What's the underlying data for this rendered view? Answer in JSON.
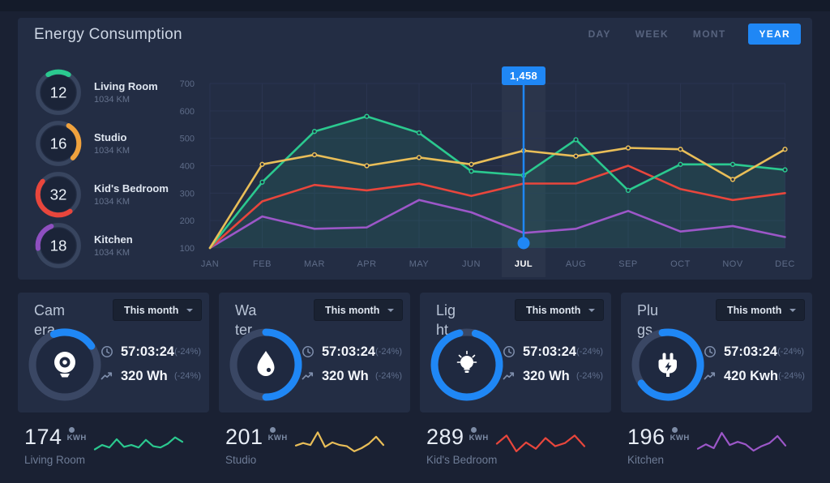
{
  "header": {
    "title": "Energy Consumption",
    "tabs": [
      {
        "label": "DAY",
        "active": false
      },
      {
        "label": "WEEK",
        "active": false
      },
      {
        "label": "MONT",
        "active": false
      },
      {
        "label": "YEAR",
        "active": true
      }
    ]
  },
  "gauges": [
    {
      "value": "12",
      "label": "Living Room",
      "sub": "1034 KM",
      "color": "#2BC98F",
      "arc_start": -30,
      "arc_sweep": 60
    },
    {
      "value": "16",
      "label": "Studio",
      "sub": "1034 KM",
      "color": "#F0A23D",
      "arc_start": 30,
      "arc_sweep": 105
    },
    {
      "value": "32",
      "label": "Kid's Bedroom",
      "sub": "1034 KM",
      "color": "#E8463C",
      "arc_start": 145,
      "arc_sweep": 165
    },
    {
      "value": "18",
      "label": "Kitchen",
      "sub": "1034 KM",
      "color": "#8E4FC0",
      "arc_start": 262,
      "arc_sweep": 78
    }
  ],
  "chart_data": {
    "type": "line",
    "x_labels": [
      "JAN",
      "FEB",
      "MAR",
      "APR",
      "MAY",
      "JUN",
      "JUL",
      "AUG",
      "SEP",
      "OCT",
      "NOV",
      "DEC"
    ],
    "y_ticks": [
      700,
      600,
      500,
      400,
      300,
      200,
      100
    ],
    "ylim": [
      100,
      700
    ],
    "grid": true,
    "series": [
      {
        "name": "Kitchen",
        "color": "#9C57C8",
        "values": [
          100,
          215,
          170,
          175,
          275,
          230,
          155,
          170,
          235,
          160,
          180,
          140
        ]
      },
      {
        "name": "Kid's Bedroom",
        "color": "#E8463C",
        "values": [
          100,
          270,
          330,
          310,
          335,
          290,
          335,
          335,
          400,
          315,
          275,
          300
        ]
      },
      {
        "name": "Living Room",
        "color": "#2BC98F",
        "area": true,
        "markers": true,
        "values": [
          100,
          340,
          525,
          580,
          520,
          380,
          365,
          495,
          310,
          405,
          405,
          385
        ]
      },
      {
        "name": "Studio",
        "color": "#E9BE58",
        "markers": true,
        "values": [
          100,
          405,
          440,
          400,
          430,
          405,
          455,
          435,
          465,
          460,
          350,
          460
        ]
      }
    ],
    "highlight": {
      "month": "JUL",
      "tooltip": "1,458"
    }
  },
  "cards": [
    {
      "title": "Camera",
      "title_lines": [
        "Cam",
        "era"
      ],
      "dropdown": "This month",
      "icon": "webcam-icon",
      "progress_start": -20,
      "progress_sweep": 75,
      "time": "57:03:24",
      "time_delta": "(-24%)",
      "energy": "320 Wh",
      "energy_delta": "(-24%)"
    },
    {
      "title": "Water",
      "title_lines": [
        "Wa",
        "ter"
      ],
      "dropdown": "This month",
      "icon": "water-drop-icon",
      "progress_start": 0,
      "progress_sweep": 180,
      "time": "57:03:24",
      "time_delta": "(-24%)",
      "energy": "320 Wh",
      "energy_delta": "(-24%)"
    },
    {
      "title": "Light",
      "title_lines": [
        "Lig",
        "ht"
      ],
      "dropdown": "This month",
      "icon": "light-bulb-icon",
      "progress_start": 15,
      "progress_sweep": 332,
      "time": "57:03:24",
      "time_delta": "(-24%)",
      "energy": "320 Wh",
      "energy_delta": "(-24%)"
    },
    {
      "title": "Plugs",
      "title_lines": [
        "Plu",
        "gs"
      ],
      "dropdown": "This month",
      "icon": "plug-icon",
      "progress_start": -10,
      "progress_sweep": 245,
      "time": "57:03:24",
      "time_delta": "(-24%)",
      "energy": "420 Kwh",
      "energy_delta": "(-24%)"
    }
  ],
  "bottom_stats": [
    {
      "value": "174",
      "unit": "KWH",
      "label": "Living Room",
      "color": "#2BC98F",
      "spark": [
        3.2,
        4.6,
        3.8,
        6.4,
        4.0,
        4.6,
        3.8,
        6.2,
        4.2,
        3.8,
        5.0,
        7.0,
        5.6
      ]
    },
    {
      "value": "201",
      "unit": "KWH",
      "label": "Studio",
      "color": "#E9BE58",
      "spark": [
        4.4,
        5.2,
        4.6,
        8.6,
        4.0,
        5.4,
        4.6,
        4.2,
        2.6,
        3.6,
        5.0,
        7.2,
        4.6
      ]
    },
    {
      "value": "289",
      "unit": "KWH",
      "label": "Kid's Bedroom",
      "color": "#E8463C",
      "spark": [
        5.0,
        7.6,
        2.6,
        5.4,
        3.4,
        6.8,
        4.2,
        5.2,
        7.6,
        4.2
      ]
    },
    {
      "value": "196",
      "unit": "KWH",
      "label": "Kitchen",
      "color": "#9C57C8",
      "spark": [
        3.4,
        4.8,
        3.6,
        8.4,
        4.6,
        5.6,
        4.8,
        2.8,
        4.2,
        5.2,
        7.4,
        4.4
      ]
    }
  ],
  "colors": {
    "accent": "#1F87F5",
    "panel": "#232D44",
    "background": "#1A2133"
  }
}
